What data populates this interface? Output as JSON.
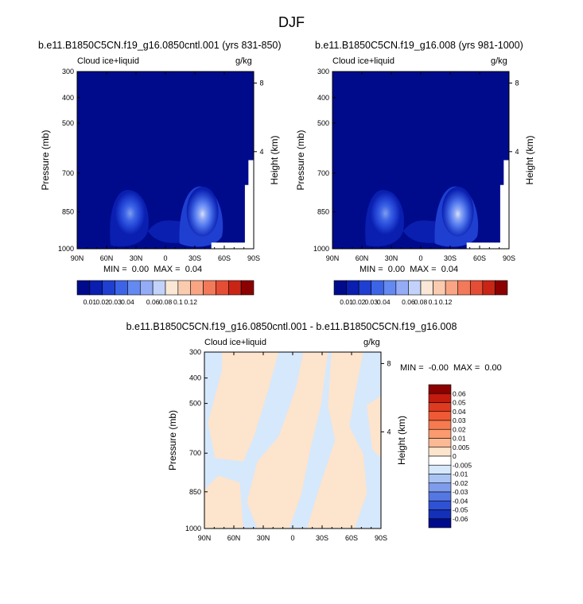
{
  "figure_title": "DJF",
  "chart_data": [
    {
      "type": "heatmap",
      "title": "b.e11.B1850C5CN.f19_g16.0850cntl.001 (yrs 831-850)",
      "left_string": "Cloud ice+liquid",
      "right_string": "g/kg",
      "ylabel": "Pressure (mb)",
      "y2label": "Height (km)",
      "xticks": [
        "90N",
        "60N",
        "30N",
        "0",
        "30S",
        "60S",
        "90S"
      ],
      "yticks": [
        "300",
        "400",
        "500",
        "700",
        "850",
        "1000"
      ],
      "y2ticks": [
        "8",
        "4"
      ],
      "stats": "MIN =  0.00  MAX =  0.04",
      "colorbar_labels": [
        "0.01",
        "0.02",
        "0.03",
        "0.04",
        "0.06",
        "0.08",
        "0.1",
        "0.12"
      ],
      "colorbar_colors": [
        "#000b8c",
        "#0a1fb0",
        "#1f3fd1",
        "#3d64e6",
        "#6489f0",
        "#93acf5",
        "#c2d2fb",
        "#fbe7d6",
        "#fbcbb0",
        "#f9a584",
        "#f2795a",
        "#e44e35",
        "#c92516",
        "#8b0000"
      ]
    },
    {
      "type": "heatmap",
      "title": "b.e11.B1850C5CN.f19_g16.008 (yrs 981-1000)",
      "left_string": "Cloud ice+liquid",
      "right_string": "g/kg",
      "ylabel": "Pressure (mb)",
      "y2label": "Height (km)",
      "xticks": [
        "90N",
        "60N",
        "30N",
        "0",
        "30S",
        "60S",
        "90S"
      ],
      "yticks": [
        "300",
        "400",
        "500",
        "700",
        "850",
        "1000"
      ],
      "y2ticks": [
        "8",
        "4"
      ],
      "stats": "MIN =  0.00  MAX =  0.04",
      "colorbar_labels": [
        "0.01",
        "0.02",
        "0.03",
        "0.04",
        "0.06",
        "0.08",
        "0.1",
        "0.12"
      ],
      "colorbar_colors": [
        "#000b8c",
        "#0a1fb0",
        "#1f3fd1",
        "#3d64e6",
        "#6489f0",
        "#93acf5",
        "#c2d2fb",
        "#fbe7d6",
        "#fbcbb0",
        "#f9a584",
        "#f2795a",
        "#e44e35",
        "#c92516",
        "#8b0000"
      ]
    },
    {
      "type": "heatmap",
      "title": "b.e11.B1850C5CN.f19_g16.0850cntl.001 - b.e11.B1850C5CN.f19_g16.008",
      "left_string": "Cloud ice+liquid",
      "right_string": "g/kg",
      "ylabel": "Pressure (mb)",
      "y2label": "Height (km)",
      "xticks": [
        "90N",
        "60N",
        "30N",
        "0",
        "30S",
        "60S",
        "90S"
      ],
      "yticks": [
        "300",
        "400",
        "500",
        "700",
        "850",
        "1000"
      ],
      "y2ticks": [
        "8",
        "4"
      ],
      "stats": "MIN =  -0.00  MAX =  0.00",
      "colorbar_labels": [
        "0.06",
        "0.05",
        "0.04",
        "0.03",
        "0.02",
        "0.01",
        "0.005",
        "0",
        "-0.005",
        "-0.01",
        "-0.02",
        "-0.03",
        "-0.04",
        "-0.05",
        "-0.06"
      ],
      "colorbar_colors": [
        "#8b0000",
        "#c31b0e",
        "#de3a1f",
        "#ef5a35",
        "#f77a4f",
        "#fa9a6e",
        "#fbb994",
        "#fde4cd",
        "#ffffff",
        "#d6e8fb",
        "#a9c3f3",
        "#7f9cec",
        "#5577e2",
        "#2f51d6",
        "#1530b8",
        "#000b8c"
      ]
    }
  ]
}
